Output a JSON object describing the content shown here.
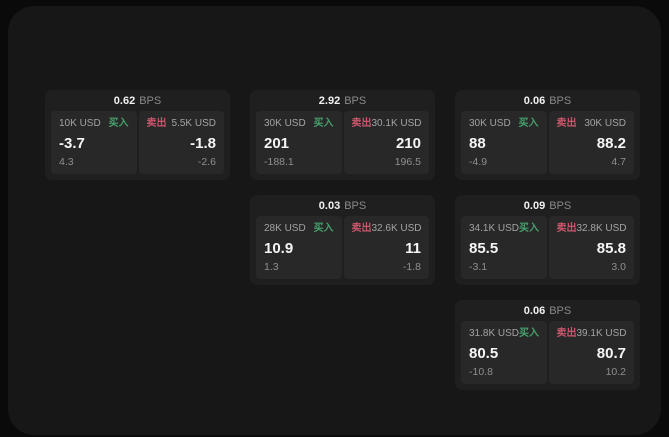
{
  "labels": {
    "bps_suffix": "BPS",
    "buy": "买入",
    "sell": "卖出"
  },
  "colors": {
    "background": "#0a0a0a",
    "canvas": "#171717",
    "card": "#1f1f1f",
    "panel": "#282828",
    "buy_green": "#46a06c",
    "sell_red": "#c9566b"
  },
  "cards": [
    {
      "bps": "0.62",
      "buy": {
        "amount": "10K USD",
        "value": "-3.7",
        "sub": "4.3"
      },
      "sell": {
        "amount": "5.5K USD",
        "value": "-1.8",
        "sub": "-2.6"
      }
    },
    {
      "bps": "2.92",
      "buy": {
        "amount": "30K USD",
        "value": "201",
        "sub": "-188.1"
      },
      "sell": {
        "amount": "30.1K USD",
        "value": "210",
        "sub": "196.5"
      }
    },
    {
      "bps": "0.06",
      "buy": {
        "amount": "30K USD",
        "value": "88",
        "sub": "-4.9"
      },
      "sell": {
        "amount": "30K USD",
        "value": "88.2",
        "sub": "4.7"
      }
    },
    {
      "bps": "0.03",
      "buy": {
        "amount": "28K USD",
        "value": "10.9",
        "sub": "1.3"
      },
      "sell": {
        "amount": "32.6K USD",
        "value": "11",
        "sub": "-1.8"
      }
    },
    {
      "bps": "0.09",
      "buy": {
        "amount": "34.1K USD",
        "value": "85.5",
        "sub": "-3.1"
      },
      "sell": {
        "amount": "32.8K USD",
        "value": "85.8",
        "sub": "3.0"
      }
    },
    {
      "bps": "0.06",
      "buy": {
        "amount": "31.8K USD",
        "value": "80.5",
        "sub": "-10.8"
      },
      "sell": {
        "amount": "39.1K USD",
        "value": "80.7",
        "sub": "10.2"
      }
    }
  ]
}
